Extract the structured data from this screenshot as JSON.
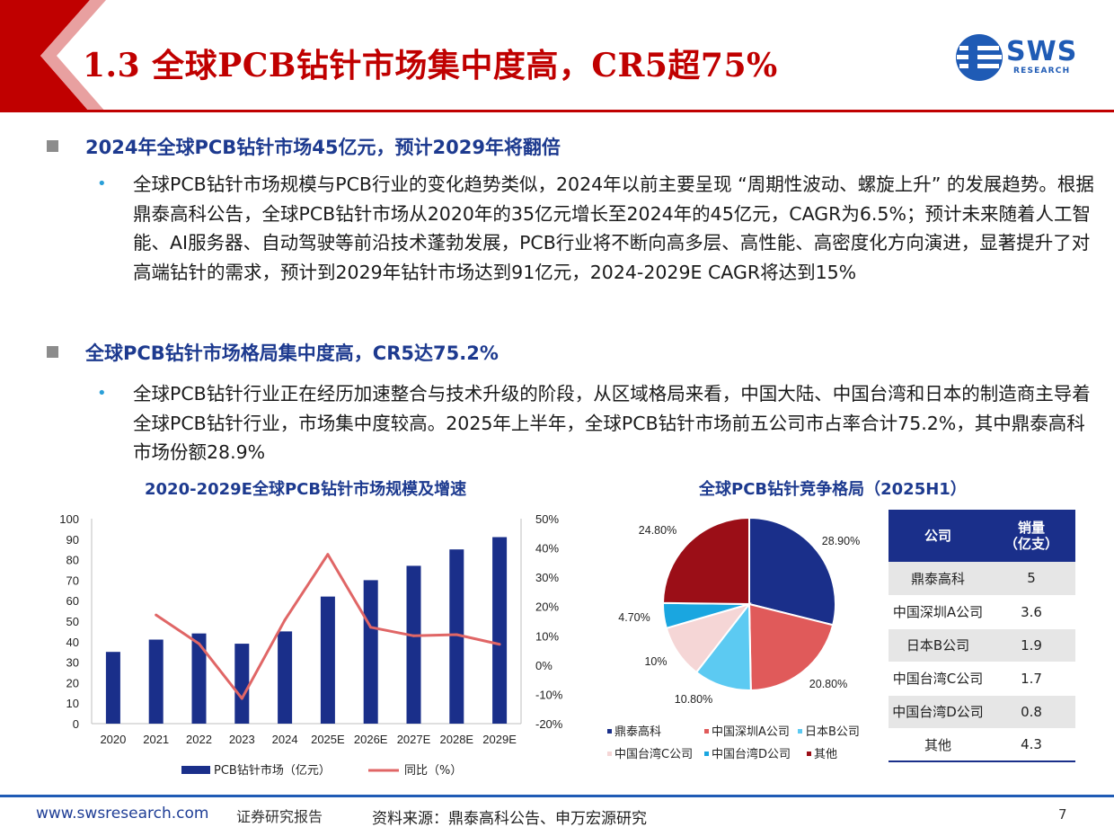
{
  "header": {
    "title": "1.3 全球PCB钻针市场集中度高，CR5超75%",
    "logo_text": "SWS",
    "logo_sub": "RESEARCH",
    "accent_color": "#c00000",
    "brand_color": "#1f5bb5"
  },
  "sections": [
    {
      "heading": "2024年全球PCB钻针市场45亿元，预计2029年将翻倍",
      "bullet": "全球PCB钻针市场规模与PCB行业的变化趋势类似，2024年以前主要呈现 “周期性波动、螺旋上升” 的发展趋势。根据鼎泰高科公告，全球PCB钻针市场从2020年的35亿元增长至2024年的45亿元，CAGR为6.5%；预计未来随着人工智能、AI服务器、自动驾驶等前沿技术蓬勃发展，PCB行业将不断向高多层、高性能、高密度化方向演进，显著提升了对高端钻针的需求，预计到2029年钻针市场达到91亿元，2024-2029E CAGR将达到15%"
    },
    {
      "heading": "全球PCB钻针市场格局集中度高，CR5达75.2%",
      "bullet": "全球PCB钻针行业正在经历加速整合与技术升级的阶段，从区域格局来看，中国大陆、中国台湾和日本的制造商主导着全球PCB钻针行业，市场集中度较高。2025年上半年，全球PCB钻针市场前五公司市占率合计75.2%，其中鼎泰高科市场份额28.9%"
    }
  ],
  "chart_data": [
    {
      "type": "bar",
      "title": "2020-2029E全球PCB钻针市场规模及增速",
      "categories": [
        "2020",
        "2021",
        "2022",
        "2023",
        "2024",
        "2025E",
        "2026E",
        "2027E",
        "2028E",
        "2029E"
      ],
      "series": [
        {
          "name": "PCB钻针市场（亿元）",
          "type": "bar",
          "axis": "left",
          "color": "#1a2f8a",
          "values": [
            35,
            41,
            44,
            39,
            45,
            62,
            70,
            77,
            85,
            91
          ]
        },
        {
          "name": "同比（%）",
          "type": "line",
          "axis": "right",
          "color": "#e06666",
          "values": [
            null,
            17.1,
            7.3,
            -11.4,
            15.4,
            37.8,
            12.9,
            10.0,
            10.4,
            7.1
          ]
        }
      ],
      "ylim": [
        0,
        100
      ],
      "yticks": [
        "0",
        "10",
        "20",
        "30",
        "40",
        "50",
        "60",
        "70",
        "80",
        "90",
        "100"
      ],
      "y2lim": [
        -20,
        50
      ],
      "y2ticks": [
        "-20%",
        "-10%",
        "0%",
        "10%",
        "20%",
        "30%",
        "40%",
        "50%"
      ],
      "grid": false,
      "legend": "bottom"
    },
    {
      "type": "pie",
      "title": "全球PCB钻针竞争格局（2025H1）",
      "labels": [
        "鼎泰高科",
        "中国深圳A公司",
        "日本B公司",
        "中国台湾C公司",
        "中国台湾D公司",
        "其他"
      ],
      "values": [
        28.9,
        20.8,
        10.8,
        10,
        4.7,
        24.8
      ],
      "value_labels": [
        "28.90%",
        "20.80%",
        "10.80%",
        "10%",
        "4.70%",
        "24.80%"
      ],
      "colors": [
        "#1a2f8a",
        "#e05a5a",
        "#5ccaf2",
        "#f5d6d6",
        "#1aa6e0",
        "#9b0e17"
      ],
      "legend": "bottom"
    },
    {
      "type": "table",
      "columns": [
        "公司",
        "销量\n（亿支）"
      ],
      "rows": [
        [
          "鼎泰高科",
          "5"
        ],
        [
          "中国深圳A公司",
          "3.6"
        ],
        [
          "日本B公司",
          "1.9"
        ],
        [
          "中国台湾C公司",
          "1.7"
        ],
        [
          "中国台湾D公司",
          "0.8"
        ],
        [
          "其他",
          "4.3"
        ]
      ]
    }
  ],
  "footer": {
    "url": "www.swsresearch.com",
    "report_type": "证券研究报告",
    "source": "资料来源：鼎泰高科公告、申万宏源研究",
    "page": "7"
  }
}
